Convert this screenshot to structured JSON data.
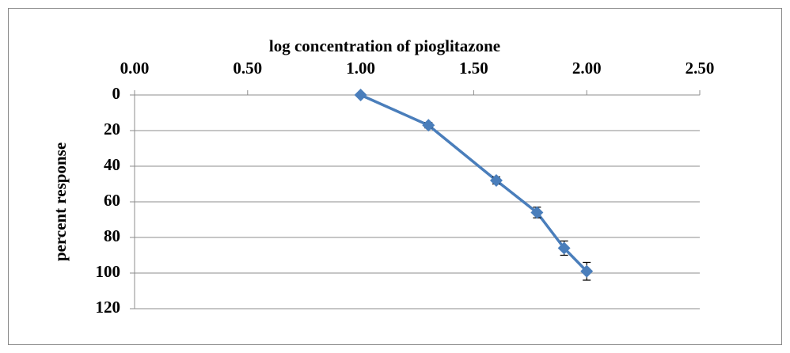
{
  "chart_data": {
    "type": "line",
    "x_label": "log concentration of pioglitazone",
    "y_label": "percent response",
    "x": [
      1.0,
      1.3,
      1.6,
      1.78,
      1.9,
      2.0
    ],
    "values": [
      0,
      17,
      48,
      66,
      86,
      99
    ],
    "errors": [
      1,
      1.5,
      2,
      3,
      4,
      5
    ],
    "color": "#4a7ebb",
    "xlim": [
      0,
      2.5
    ],
    "xticks": [
      {
        "value": 0,
        "label": "0.00"
      },
      {
        "value": 0.5,
        "label": "0.50"
      },
      {
        "value": 1,
        "label": "1.00"
      },
      {
        "value": 1.5,
        "label": "1.50"
      },
      {
        "value": 2,
        "label": "2.00"
      },
      {
        "value": 2.5,
        "label": "2.50"
      }
    ],
    "ylim": [
      0,
      120
    ],
    "yticks": [
      0,
      20,
      40,
      60,
      80,
      100,
      120
    ],
    "y_inverted": true,
    "x_axis_position": "top",
    "grid": true
  }
}
